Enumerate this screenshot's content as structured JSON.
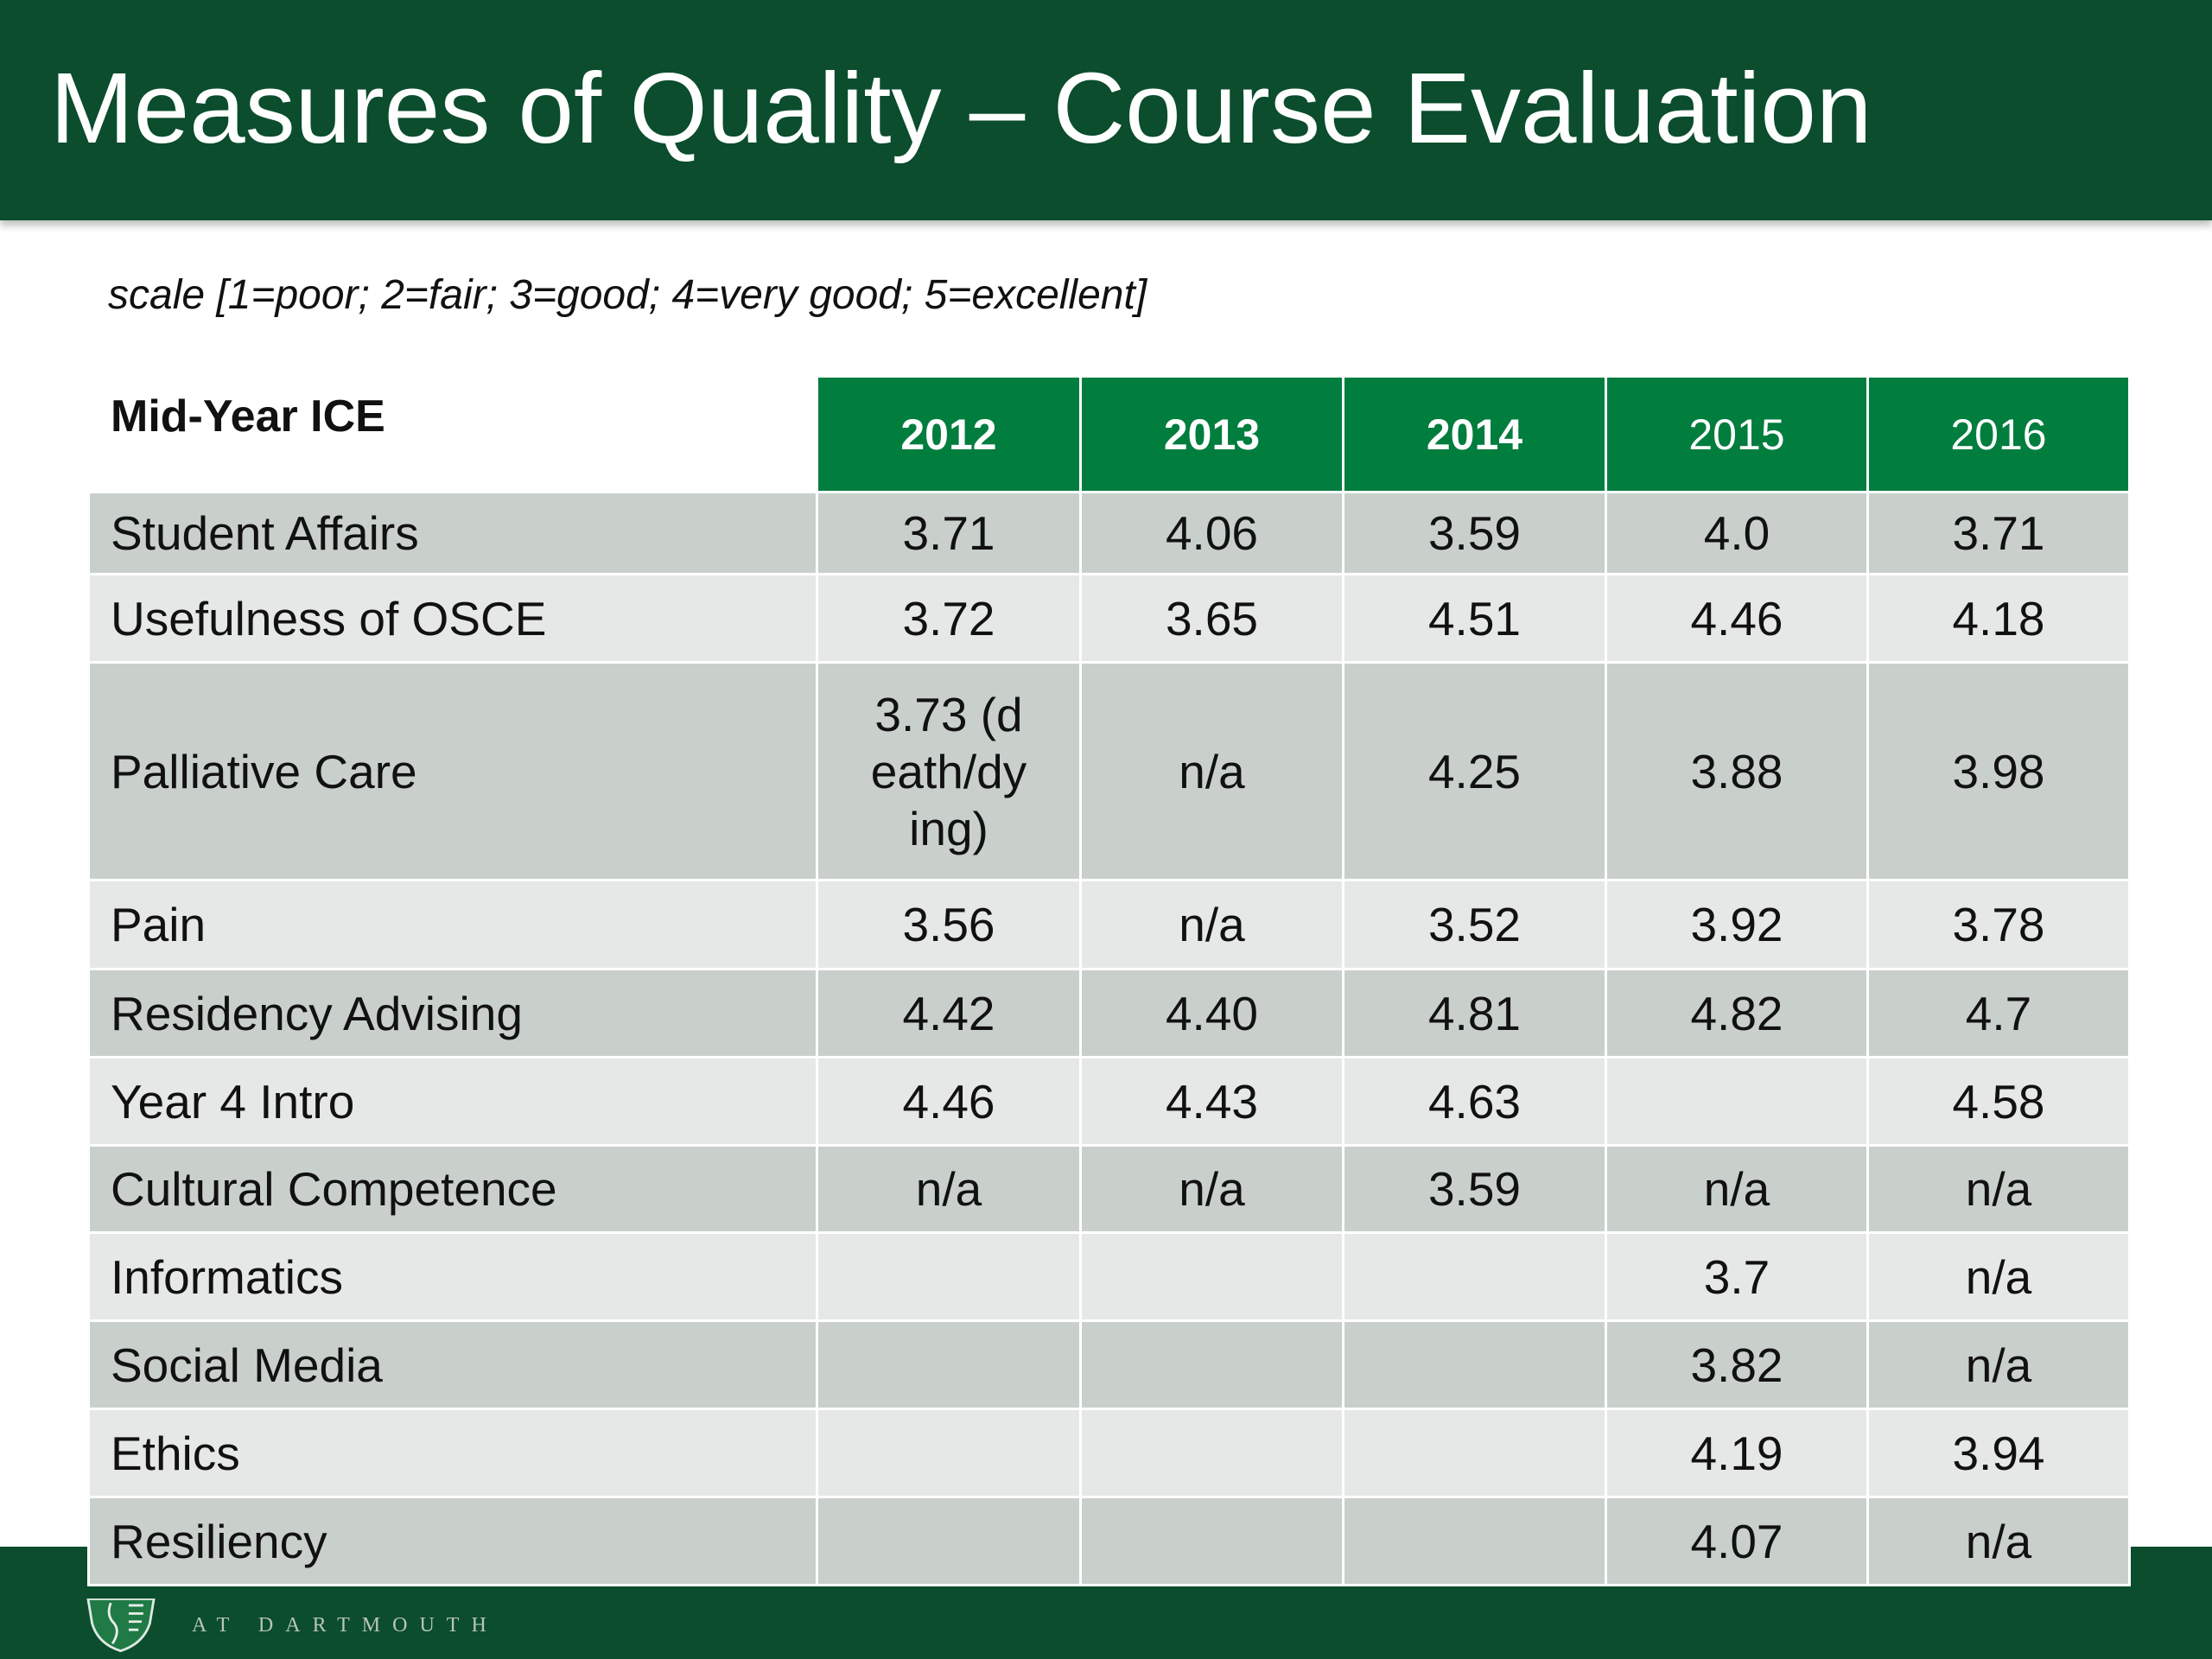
{
  "title": "Measures of Quality – Course Evaluation",
  "scale_note": "scale [1=poor; 2=fair; 3=good; 4=very good; 5=excellent]",
  "table": {
    "label": "Mid-Year ICE",
    "years": [
      "2012",
      "2013",
      "2014",
      "2015",
      "2016"
    ],
    "rows": [
      {
        "name": "Student Affairs",
        "values": [
          "3.71",
          "4.06",
          "3.59",
          "4.0",
          "3.71"
        ]
      },
      {
        "name": "Usefulness of OSCE",
        "values": [
          "3.72",
          "3.65",
          "4.51",
          "4.46",
          "4.18"
        ]
      },
      {
        "name": "Palliative Care",
        "values": [
          "3.73 (death/dying)",
          "n/a",
          "4.25",
          "3.88",
          "3.98"
        ]
      },
      {
        "name": "Pain",
        "values": [
          "3.56",
          "n/a",
          "3.52",
          "3.92",
          "3.78"
        ]
      },
      {
        "name": "Residency Advising",
        "values": [
          "4.42",
          "4.40",
          "4.81",
          "4.82",
          "4.7"
        ]
      },
      {
        "name": "Year 4 Intro",
        "values": [
          "4.46",
          "4.43",
          "4.63",
          "",
          "4.58"
        ]
      },
      {
        "name": "Cultural Competence",
        "values": [
          "n/a",
          "n/a",
          "3.59",
          "n/a",
          "n/a"
        ]
      },
      {
        "name": "Informatics",
        "values": [
          "",
          "",
          "",
          "3.7",
          "n/a"
        ]
      },
      {
        "name": "Social Media",
        "values": [
          "",
          "",
          "",
          "3.82",
          "n/a"
        ]
      },
      {
        "name": "Ethics",
        "values": [
          "",
          "",
          "",
          "4.19",
          "3.94"
        ]
      },
      {
        "name": "Resiliency",
        "values": [
          "",
          "",
          "",
          "4.07",
          "n/a"
        ]
      }
    ]
  },
  "footer": {
    "logo_text": "AT DARTMOUTH"
  },
  "colors": {
    "brand_dark": "#0b4d2d",
    "header_green": "#017d3e",
    "row_dark": "#c9d0cc",
    "row_light": "#e5e8e6"
  }
}
